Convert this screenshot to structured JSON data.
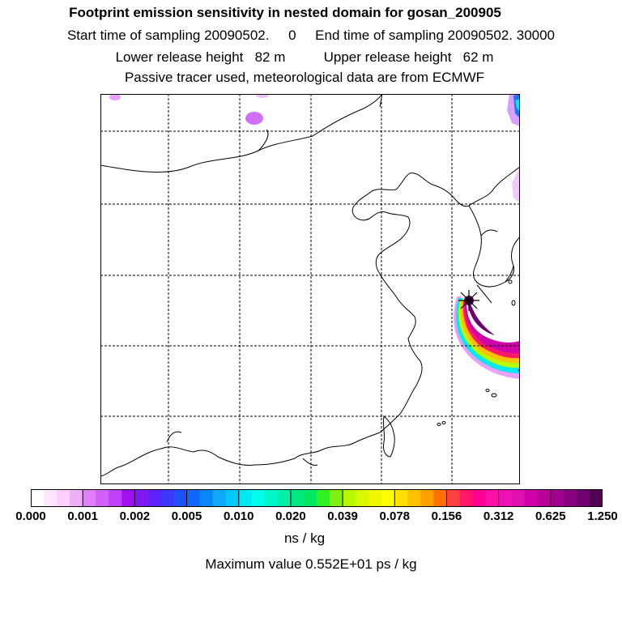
{
  "title": "Footprint emission sensitivity in nested domain for gosan_200905",
  "sampling": {
    "start_label": "Start time of sampling",
    "start_value": "20090502.     0",
    "end_label": "End time of sampling",
    "end_value": "20090502. 30000"
  },
  "release": {
    "lower_label": "Lower release height",
    "lower_value": "82 m",
    "upper_label": "Upper release height",
    "upper_value": "62 m"
  },
  "note": "Passive tracer used, meteorological data are from ECMWF",
  "colorbar": {
    "labels": [
      "0.000",
      "0.001",
      "0.002",
      "0.005",
      "0.010",
      "0.020",
      "0.039",
      "0.078",
      "0.156",
      "0.312",
      "0.625",
      "1.250"
    ],
    "colors": [
      "#ffffff",
      "#ffe8ff",
      "#fcd0fc",
      "#f0b0f8",
      "#e080f8",
      "#d060f8",
      "#c040f8",
      "#a010f0",
      "#8018f0",
      "#6020f8",
      "#4038f8",
      "#2050f8",
      "#1068f8",
      "#0888f8",
      "#10a8f8",
      "#00c8f8",
      "#00e8f0",
      "#00ffe8",
      "#00f8c8",
      "#00f0a8",
      "#00e880",
      "#00e860",
      "#30f020",
      "#80f010",
      "#b8f800",
      "#d8f800",
      "#f0f800",
      "#ffff00",
      "#ffe000",
      "#ffc000",
      "#ffa000",
      "#ff7000",
      "#ff4040",
      "#ff1868",
      "#ff0090",
      "#ff10a8",
      "#f010b8",
      "#e010b0",
      "#d000a8",
      "#b80098",
      "#a00090",
      "#880080",
      "#700070",
      "#500050"
    ],
    "unit": "ns / kg"
  },
  "max_value": "Maximum value  0.552E+01 ps / kg",
  "map": {
    "gridlines": "dashed",
    "receptor_marker": "star-icon"
  }
}
